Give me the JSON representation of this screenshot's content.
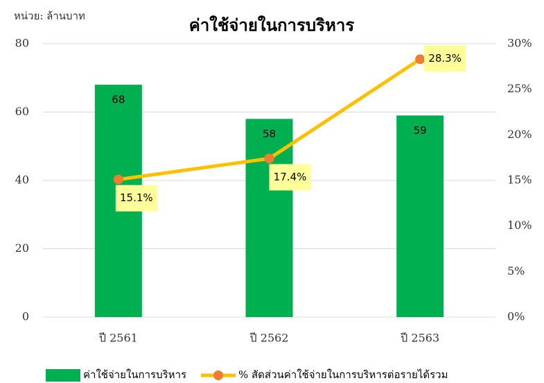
{
  "chart_data": {
    "type": "bar",
    "title": "ค่าใช้จ่ายในการบริหาร",
    "annotation": "หน่วย: ล้านบาท",
    "categories": [
      "ปี 2561",
      "ปี 2562",
      "ปี 2563"
    ],
    "series": [
      {
        "name": "ค่าใช้จ่ายในการบริหาร",
        "type": "bar",
        "color": "#00b050",
        "values": [
          68,
          58,
          59
        ]
      },
      {
        "name": "% สัดส่วนค่าใช้จ่ายในการบริหารต่อรายได้รวม",
        "type": "line",
        "axis": "y2",
        "color": "#ffc000",
        "marker_color": "#ed7d31",
        "values": [
          15.1,
          17.4,
          28.3
        ],
        "value_labels": [
          "15.1%",
          "17.4%",
          "28.3%"
        ]
      }
    ],
    "ylim": [
      0,
      80
    ],
    "yticks": [
      0,
      20,
      40,
      60,
      80
    ],
    "y2lim": [
      0,
      30
    ],
    "y2ticks": [
      {
        "value": 0,
        "label": "0%"
      },
      {
        "value": 5,
        "label": "5%"
      },
      {
        "value": 10,
        "label": "10%"
      },
      {
        "value": 15,
        "label": "15%"
      },
      {
        "value": 20,
        "label": "20%"
      },
      {
        "value": 25,
        "label": "25%"
      },
      {
        "value": 30,
        "label": "30%"
      }
    ],
    "grid": true,
    "legend": "bottom"
  }
}
